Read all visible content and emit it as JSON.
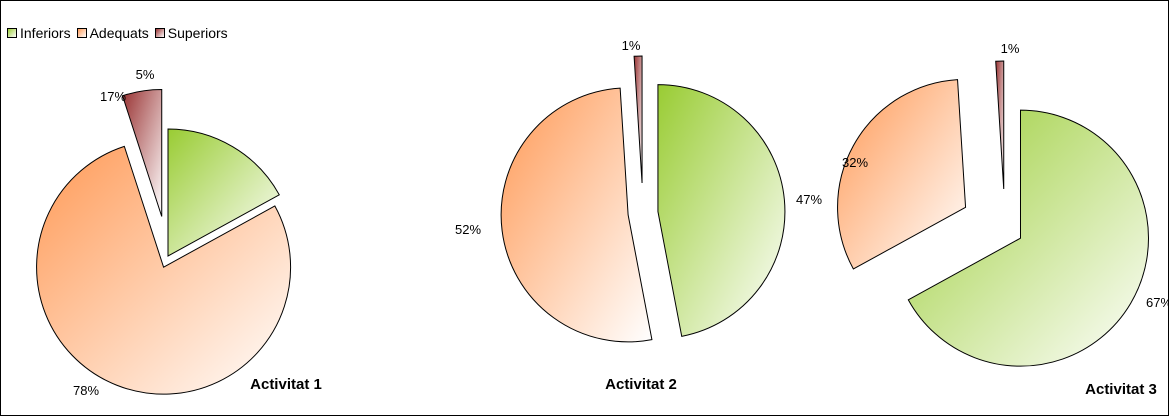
{
  "chart_data": {
    "type": "pie",
    "legend": {
      "position": "top-left",
      "entries": [
        {
          "label": "Inferiors",
          "color": "#99cc33"
        },
        {
          "label": "Adequats",
          "color": "#ff9955"
        },
        {
          "label": "Superiors",
          "color": "#993333"
        }
      ]
    },
    "pies": [
      {
        "title": "Activitat 1",
        "slices": [
          {
            "series": "Inferiors",
            "value": 17,
            "label": "17%"
          },
          {
            "series": "Adequats",
            "value": 78,
            "label": "78%"
          },
          {
            "series": "Superiors",
            "value": 5,
            "label": "5%"
          }
        ]
      },
      {
        "title": "Activitat 2",
        "slices": [
          {
            "series": "Inferiors",
            "value": 47,
            "label": "47%"
          },
          {
            "series": "Adequats",
            "value": 52,
            "label": "52%"
          },
          {
            "series": "Superiors",
            "value": 1,
            "label": "1%"
          }
        ]
      },
      {
        "title": "Activitat 3",
        "slices": [
          {
            "series": "Inferiors",
            "value": 67,
            "label": "67%"
          },
          {
            "series": "Adequats",
            "value": 32,
            "label": "32%"
          },
          {
            "series": "Superiors",
            "value": 1,
            "label": "1%"
          }
        ]
      }
    ]
  }
}
